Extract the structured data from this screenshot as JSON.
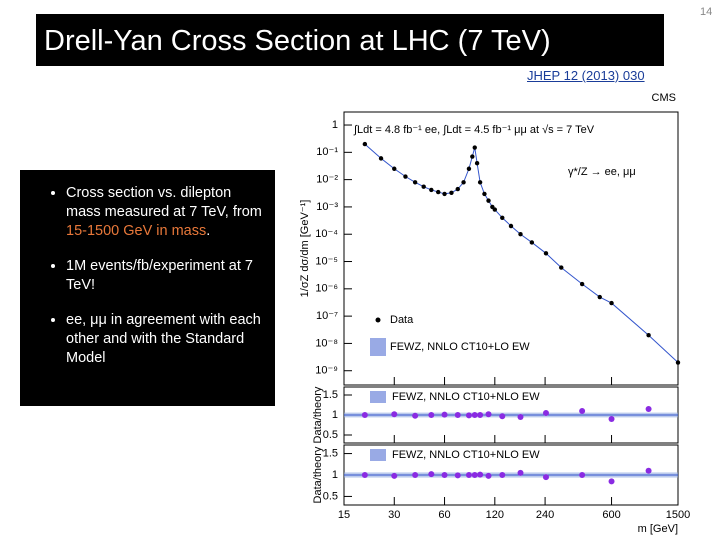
{
  "slide": {
    "title": "Drell-Yan Cross Section at LHC (7 TeV)",
    "reference": "JHEP 12 (2013) 030",
    "page_number": "14",
    "bullets": [
      {
        "text": "Cross section vs. dilepton mass measured at 7 TeV, from ",
        "highlight": "15-1500 GeV in mass",
        "end": "."
      },
      {
        "text": "1M events/fb/experiment at 7 TeV!"
      },
      {
        "text": "ee, μμ in agreement with each other and with the Standard Model"
      }
    ]
  },
  "chart_data": [
    {
      "type": "scatter",
      "log_x": true,
      "log_y": true,
      "annotations": [
        "CMS",
        "∫Ldt = 4.8 fb⁻¹ ee, ∫Ldt = 4.5 fb⁻¹ μμ at √s = 7 TeV",
        "γ*/Z → ee, μμ"
      ],
      "y_label": "1/σZ dσ/dm [GeV⁻¹]",
      "legend": "lower-left",
      "x": [
        20,
        25,
        30,
        35,
        40,
        45,
        50,
        55,
        60,
        66,
        72,
        78,
        84,
        88,
        91,
        94,
        98,
        104,
        110,
        116,
        120,
        133,
        150,
        171,
        200,
        243,
        300,
        400,
        510,
        600,
        1000,
        1500
      ],
      "series": [
        {
          "name": "Data",
          "color": "#000000",
          "values": [
            0.2,
            0.06,
            0.025,
            0.013,
            0.008,
            0.0055,
            0.0042,
            0.0035,
            0.003,
            0.0033,
            0.0045,
            0.008,
            0.025,
            0.07,
            0.15,
            0.04,
            0.008,
            0.003,
            0.0017,
            0.001,
            0.0008,
            0.0004,
            0.0002,
            0.0001,
            5e-05,
            2e-05,
            6e-06,
            1.5e-06,
            5e-07,
            3e-07,
            2e-08,
            2e-09
          ]
        },
        {
          "name": "FEWZ, NNLO CT10+LO EW",
          "color": "#3355cc",
          "values": [
            0.2,
            0.06,
            0.025,
            0.013,
            0.008,
            0.0055,
            0.0042,
            0.0035,
            0.003,
            0.0033,
            0.0045,
            0.008,
            0.025,
            0.07,
            0.15,
            0.04,
            0.008,
            0.003,
            0.0017,
            0.001,
            0.0008,
            0.0004,
            0.0002,
            0.0001,
            5e-05,
            2e-05,
            6e-06,
            1.5e-06,
            5e-07,
            3e-07,
            2e-08,
            2e-09
          ]
        }
      ],
      "xlim": [
        15,
        1500
      ],
      "ylim": [
        3e-10,
        3
      ],
      "yticks": [
        1,
        {
          "value": 0.1,
          "label": "10⁻¹"
        },
        {
          "value": 0.01,
          "label": "10⁻²"
        },
        {
          "value": 0.001,
          "label": "10⁻³"
        },
        {
          "value": 0.0001,
          "label": "10⁻⁴"
        },
        {
          "value": 1e-05,
          "label": "10⁻⁵"
        },
        {
          "value": 1e-06,
          "label": "10⁻⁶"
        },
        {
          "value": 1e-07,
          "label": "10⁻⁷"
        },
        {
          "value": 1e-08,
          "label": "10⁻⁸"
        },
        {
          "value": 1e-09,
          "label": "10⁻⁹"
        }
      ]
    },
    {
      "type": "ratio",
      "log_x": true,
      "annotations": [
        "FEWZ, NNLO CT10+NLO EW"
      ],
      "y_label": "Data/theory",
      "x": [
        20,
        30,
        40,
        50,
        60,
        72,
        84,
        91,
        98,
        110,
        133,
        171,
        243,
        400,
        600,
        1000
      ],
      "values": [
        1.0,
        1.02,
        0.98,
        1.0,
        1.01,
        1.0,
        0.99,
        1.0,
        1.0,
        1.02,
        0.97,
        0.95,
        1.05,
        1.1,
        0.9,
        1.15
      ],
      "xlim": [
        15,
        1500
      ],
      "ylim": [
        0.3,
        1.7
      ],
      "yticks": [
        0.5,
        1,
        1.5
      ]
    },
    {
      "type": "ratio",
      "log_x": true,
      "annotations": [
        "FEWZ, NNLO CT10+NLO EW"
      ],
      "y_label": "Data/theory",
      "x_label": "m [GeV]",
      "x": [
        20,
        30,
        40,
        50,
        60,
        72,
        84,
        91,
        98,
        110,
        133,
        171,
        243,
        400,
        600,
        1000
      ],
      "values": [
        1.0,
        0.98,
        1.0,
        1.02,
        1.0,
        0.99,
        1.0,
        1.0,
        1.01,
        0.98,
        1.0,
        1.05,
        0.95,
        1.0,
        0.85,
        1.1
      ],
      "xlim": [
        15,
        1500
      ],
      "ylim": [
        0.3,
        1.7
      ],
      "yticks": [
        0.5,
        1,
        1.5
      ],
      "xticks": [
        15,
        30,
        60,
        120,
        240,
        600,
        1500
      ]
    }
  ]
}
